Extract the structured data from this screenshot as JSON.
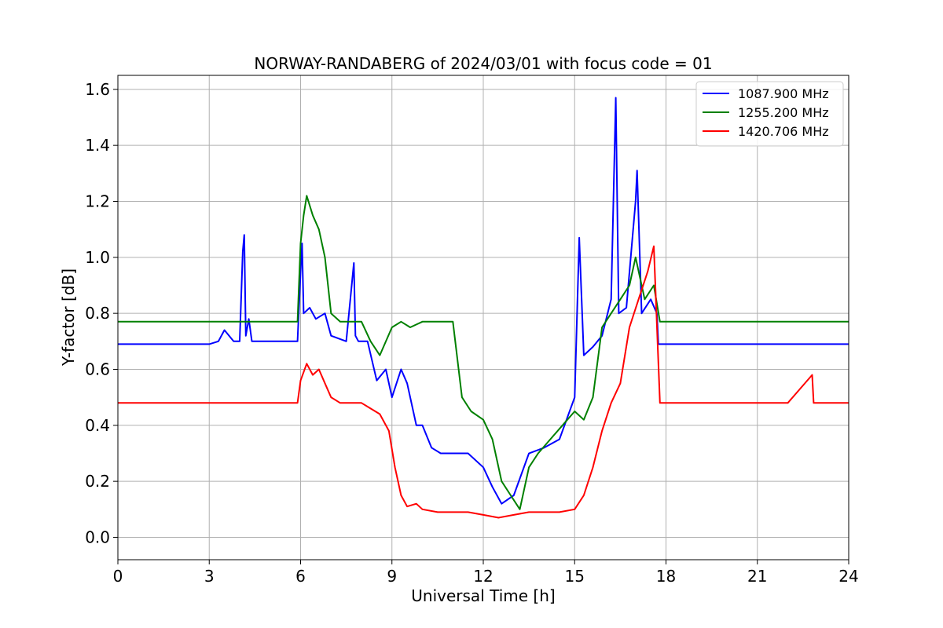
{
  "chart_data": {
    "type": "line",
    "title": "NORWAY-RANDABERG of 2024/03/01 with focus code = 01",
    "xlabel": "Universal Time [h]",
    "ylabel": "Y-factor [dB]",
    "xlim": [
      0,
      24
    ],
    "ylim": [
      -0.08,
      1.65
    ],
    "xticks": [
      0,
      3,
      6,
      9,
      12,
      15,
      18,
      21,
      24
    ],
    "yticks": [
      0.0,
      0.2,
      0.4,
      0.6,
      0.8,
      1.0,
      1.2,
      1.4,
      1.6
    ],
    "xtick_labels": [
      "0",
      "3",
      "6",
      "9",
      "12",
      "15",
      "18",
      "21",
      "24"
    ],
    "ytick_labels": [
      "0.0",
      "0.2",
      "0.4",
      "0.6",
      "0.8",
      "1.0",
      "1.2",
      "1.4",
      "1.6"
    ],
    "grid": true,
    "legend_position": "top-right",
    "series": [
      {
        "name": "1087.900 MHz",
        "color": "#0000ff",
        "x": [
          0,
          0.5,
          1,
          2,
          3,
          3.3,
          3.5,
          3.8,
          4.0,
          4.1,
          4.15,
          4.2,
          4.3,
          4.4,
          4.5,
          5,
          5.5,
          5.9,
          6.0,
          6.05,
          6.1,
          6.3,
          6.5,
          6.8,
          7.0,
          7.5,
          7.75,
          7.8,
          7.9,
          8.2,
          8.5,
          8.8,
          9.0,
          9.3,
          9.5,
          9.8,
          10.0,
          10.3,
          10.6,
          11.0,
          11.5,
          12.0,
          12.3,
          12.6,
          13.0,
          13.5,
          14.0,
          14.5,
          15.0,
          15.15,
          15.3,
          15.6,
          15.9,
          16.2,
          16.35,
          16.45,
          16.7,
          17.0,
          17.05,
          17.2,
          17.5,
          17.7,
          17.75,
          18,
          19,
          20,
          21,
          22,
          23,
          24
        ],
        "y": [
          0.69,
          0.69,
          0.69,
          0.69,
          0.69,
          0.7,
          0.74,
          0.7,
          0.7,
          1.02,
          1.08,
          0.72,
          0.78,
          0.7,
          0.7,
          0.7,
          0.7,
          0.7,
          0.95,
          1.05,
          0.8,
          0.82,
          0.78,
          0.8,
          0.72,
          0.7,
          0.98,
          0.72,
          0.7,
          0.7,
          0.56,
          0.6,
          0.5,
          0.6,
          0.55,
          0.4,
          0.4,
          0.32,
          0.3,
          0.3,
          0.3,
          0.25,
          0.18,
          0.12,
          0.15,
          0.3,
          0.32,
          0.35,
          0.5,
          1.07,
          0.65,
          0.68,
          0.72,
          0.85,
          1.57,
          0.8,
          0.82,
          1.2,
          1.31,
          0.8,
          0.85,
          0.8,
          0.69,
          0.69,
          0.69,
          0.69,
          0.69,
          0.69,
          0.69,
          0.69
        ]
      },
      {
        "name": "1255.200 MHz",
        "color": "#008000",
        "x": [
          0,
          1,
          2,
          3,
          4,
          5,
          5.9,
          6.0,
          6.1,
          6.2,
          6.4,
          6.6,
          6.8,
          7.0,
          7.3,
          7.6,
          8.0,
          8.3,
          8.6,
          9.0,
          9.3,
          9.6,
          10.0,
          10.5,
          11.0,
          11.3,
          11.6,
          12.0,
          12.3,
          12.6,
          12.9,
          13.2,
          13.5,
          13.8,
          14.2,
          14.6,
          15.0,
          15.3,
          15.6,
          15.9,
          16.2,
          16.5,
          16.8,
          17.0,
          17.3,
          17.6,
          17.8,
          18,
          19,
          20,
          21,
          22,
          23,
          24
        ],
        "y": [
          0.77,
          0.77,
          0.77,
          0.77,
          0.77,
          0.77,
          0.77,
          1.05,
          1.15,
          1.22,
          1.15,
          1.1,
          1.0,
          0.8,
          0.77,
          0.77,
          0.77,
          0.7,
          0.65,
          0.75,
          0.77,
          0.75,
          0.77,
          0.77,
          0.77,
          0.5,
          0.45,
          0.42,
          0.35,
          0.2,
          0.15,
          0.1,
          0.25,
          0.3,
          0.35,
          0.4,
          0.45,
          0.42,
          0.5,
          0.75,
          0.8,
          0.85,
          0.9,
          1.0,
          0.85,
          0.9,
          0.77,
          0.77,
          0.77,
          0.77,
          0.77,
          0.77,
          0.77,
          0.77
        ]
      },
      {
        "name": "1420.706 MHz",
        "color": "#ff0000",
        "x": [
          0,
          1,
          2,
          3,
          4,
          5,
          5.9,
          6.0,
          6.2,
          6.4,
          6.6,
          6.8,
          7.0,
          7.3,
          7.6,
          8.0,
          8.3,
          8.6,
          8.9,
          9.1,
          9.3,
          9.5,
          9.8,
          10.0,
          10.5,
          11.0,
          11.5,
          12.0,
          12.5,
          13.0,
          13.5,
          14.0,
          14.5,
          15.0,
          15.3,
          15.6,
          15.9,
          16.2,
          16.5,
          16.8,
          17.1,
          17.4,
          17.6,
          17.8,
          18,
          19,
          20,
          21,
          22,
          22.8,
          22.85,
          23,
          24
        ],
        "y": [
          0.48,
          0.48,
          0.48,
          0.48,
          0.48,
          0.48,
          0.48,
          0.56,
          0.62,
          0.58,
          0.6,
          0.55,
          0.5,
          0.48,
          0.48,
          0.48,
          0.46,
          0.44,
          0.38,
          0.25,
          0.15,
          0.11,
          0.12,
          0.1,
          0.09,
          0.09,
          0.09,
          0.08,
          0.07,
          0.08,
          0.09,
          0.09,
          0.09,
          0.1,
          0.15,
          0.25,
          0.38,
          0.48,
          0.55,
          0.75,
          0.85,
          0.95,
          1.04,
          0.48,
          0.48,
          0.48,
          0.48,
          0.48,
          0.48,
          0.58,
          0.48,
          0.48,
          0.48
        ]
      }
    ]
  }
}
